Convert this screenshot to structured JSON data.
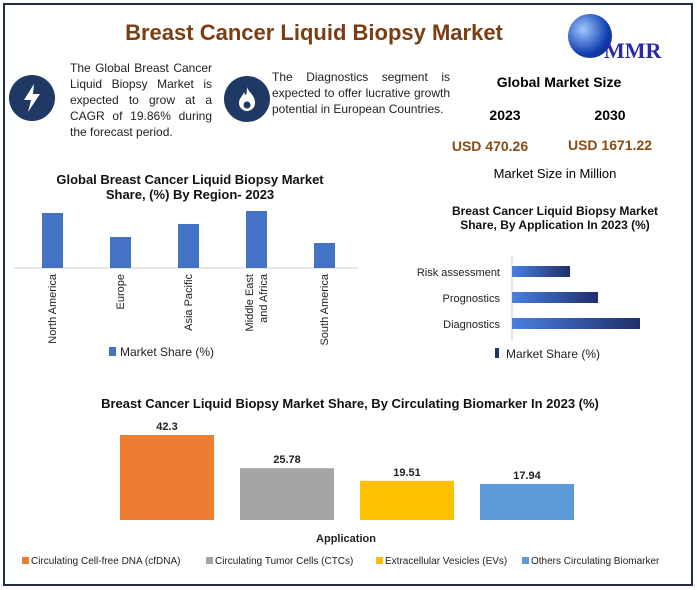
{
  "title": "Breast Cancer Liquid Biopsy Market",
  "logo": {
    "text": "MMR"
  },
  "info": [
    {
      "icon": "lightning-icon",
      "text": "The Global Breast Cancer Liquid Biopsy Market is expected to grow at a CAGR of 19.86% during the forecast period."
    },
    {
      "icon": "flame-icon",
      "text": "The Diagnostics segment is expected to offer lucrative growth potential in European Countries."
    }
  ],
  "market_size": {
    "heading": "Global Market Size",
    "year1": "2023",
    "year2": "2030",
    "value1": "USD 470.26",
    "value2": "USD 1671.22",
    "unit": "Market Size in Million"
  },
  "colors": {
    "title": "#7a3e12",
    "navy": "#1f3864",
    "bar_blue": "#4472c4",
    "orange": "#ed7d31",
    "gray": "#a5a5a5",
    "yellow": "#ffc000",
    "lightblue": "#5b9bd5"
  },
  "chart_data": [
    {
      "type": "bar",
      "title": "Global Breast Cancer Liquid Biopsy Market Share, (%) By Region- 2023",
      "categories": [
        "North America",
        "Europe",
        "Asia Pacific",
        "Middle East and Africa",
        "South America"
      ],
      "series": [
        {
          "name": "Market Share (%)",
          "values": [
            55,
            31,
            44,
            57,
            25
          ]
        }
      ],
      "legend": "bottom",
      "grid": false
    },
    {
      "type": "bar",
      "orientation": "horizontal",
      "title": "Breast Cancer Liquid Biopsy Market  Share, By Application In 2023 (%)",
      "categories": [
        "Risk assessment",
        "Prognostics",
        "Diagnostics"
      ],
      "series": [
        {
          "name": "Market Share (%)",
          "values": [
            58,
            86,
            128
          ]
        }
      ],
      "legend": "bottom",
      "grid": false
    },
    {
      "type": "bar",
      "title": "Breast Cancer Liquid Biopsy Market  Share, By Circulating Biomarker In 2023 (%)",
      "xlabel": "Application",
      "categories": [
        "Circulating Cell-free DNA (cfDNA)",
        "Circulating Tumor Cells (CTCs)",
        "Extracellular Vesicles (EVs)",
        "Others Circulating Biomarker"
      ],
      "values": [
        42.3,
        25.78,
        19.51,
        17.94
      ],
      "labels": [
        "42.3",
        "25.78",
        "19.51",
        "17.94"
      ],
      "legend": "bottom",
      "grid": false
    }
  ]
}
